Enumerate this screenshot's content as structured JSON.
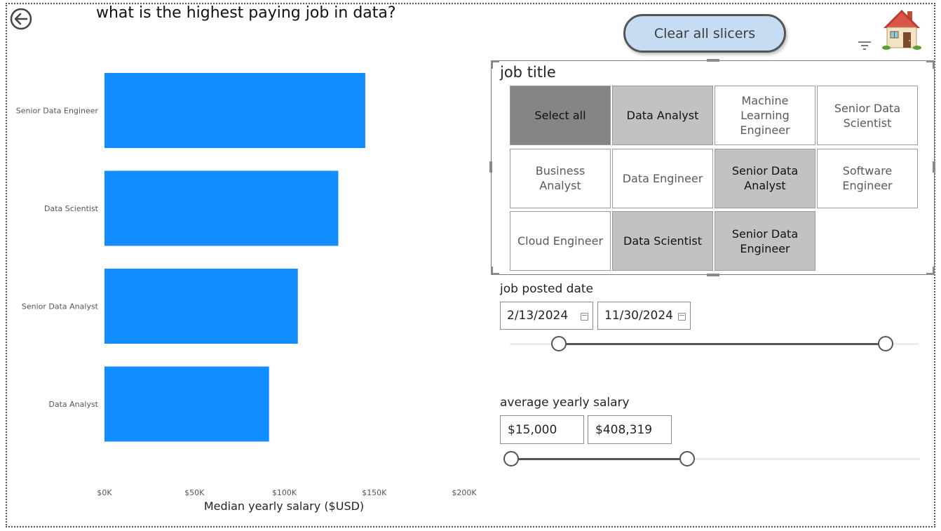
{
  "page": {
    "title": "what is the highest paying job in data?",
    "clear_button": "Clear all slicers",
    "icons": [
      "back-arrow-icon",
      "filter-icon",
      "more-options-icon",
      "home-icon"
    ]
  },
  "chart_data": {
    "type": "bar",
    "orientation": "horizontal",
    "categories": [
      "Senior Data Engineer",
      "Data Scientist",
      "Senior Data Analyst",
      "Data Analyst"
    ],
    "values": [
      145000,
      130000,
      107500,
      91500
    ],
    "xlabel": "Median yearly salary ($USD)",
    "ylabel": "",
    "xticks": [
      "$0K",
      "$50K",
      "$100K",
      "$150K",
      "$200K"
    ],
    "xlim": [
      0,
      200000
    ],
    "grid": false,
    "bar_color": "#118DFF"
  },
  "job_title_slicer": {
    "title": "job title",
    "tiles": [
      {
        "label": "Select all",
        "state": "select-all"
      },
      {
        "label": "Data Analyst",
        "state": "selected"
      },
      {
        "label": "Machine Learning Engineer",
        "state": "unselected"
      },
      {
        "label": "Senior Data Scientist",
        "state": "unselected"
      },
      {
        "label": "Business Analyst",
        "state": "unselected"
      },
      {
        "label": "Data Engineer",
        "state": "unselected"
      },
      {
        "label": "Senior Data Analyst",
        "state": "selected"
      },
      {
        "label": "Software Engineer",
        "state": "unselected"
      },
      {
        "label": "Cloud Engineer",
        "state": "unselected"
      },
      {
        "label": "Data Scientist",
        "state": "selected"
      },
      {
        "label": "Senior Data Engineer",
        "state": "selected"
      }
    ]
  },
  "date_slicer": {
    "label": "job posted date",
    "start": "2/13/2024",
    "end": "11/30/2024",
    "start_fraction": 0.12,
    "end_fraction": 0.92
  },
  "salary_slicer": {
    "label": "average yearly salary",
    "min": "$15,000",
    "max": "$408,319",
    "start_fraction": 0.0,
    "end_fraction": 0.43
  }
}
